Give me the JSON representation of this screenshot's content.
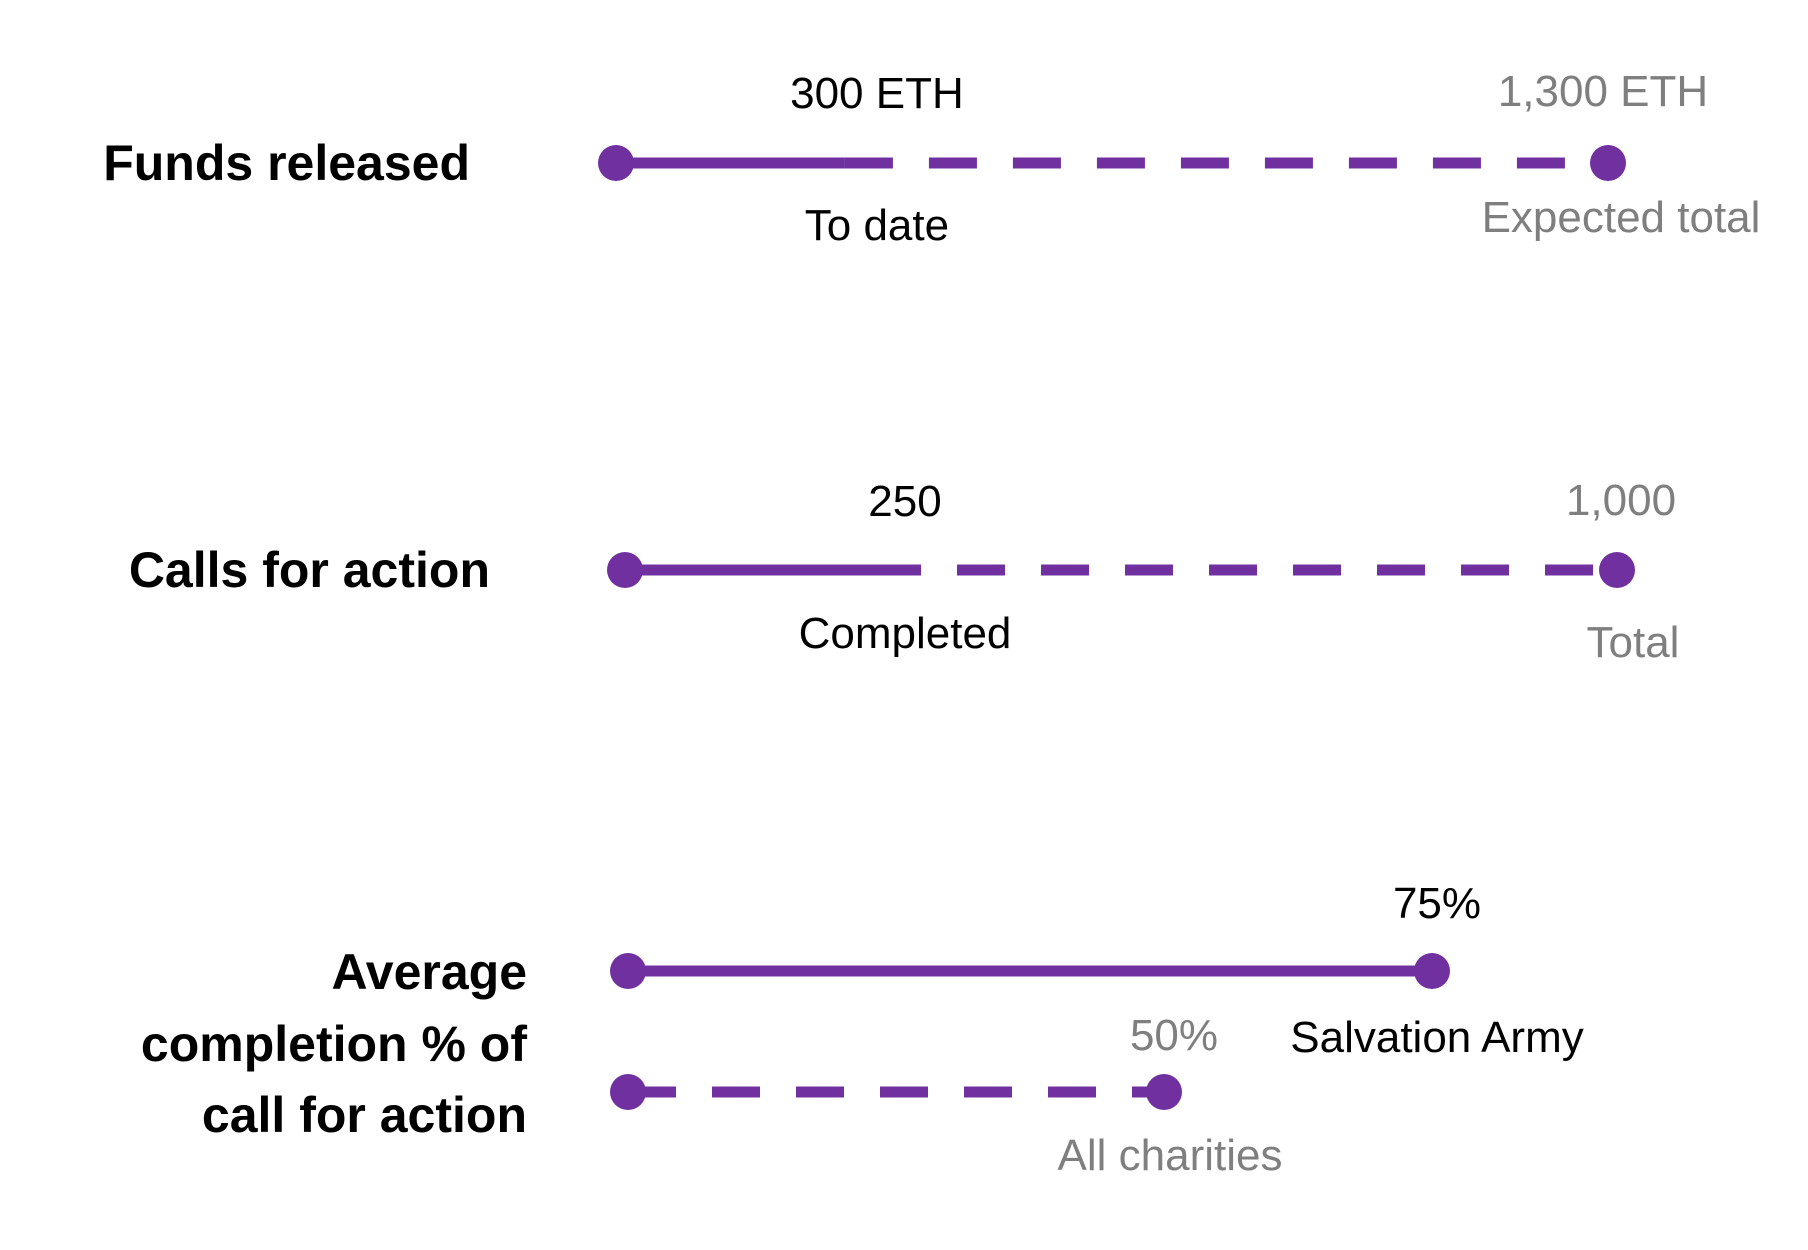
{
  "colors": {
    "accent": "#7030a0",
    "text_primary": "#000000",
    "text_secondary": "#7f7f7f"
  },
  "chart_data": [
    {
      "type": "progress-line",
      "label": "Funds released",
      "unit": "ETH",
      "actual": {
        "value": 300,
        "value_label": "300 ETH",
        "caption": "To date"
      },
      "target": {
        "value": 1300,
        "value_label": "1,300 ETH",
        "caption": "Expected total"
      }
    },
    {
      "type": "progress-line",
      "label": "Calls for action",
      "actual": {
        "value": 250,
        "value_label": "250",
        "caption": "Completed"
      },
      "target": {
        "value": 1000,
        "value_label": "1,000",
        "caption": "Total"
      }
    },
    {
      "type": "comparison-lines",
      "label_lines": [
        "Average",
        "completion % of",
        "call for action"
      ],
      "unit": "%",
      "series": [
        {
          "name": "Salvation Army",
          "value": 75,
          "value_label": "75%",
          "style": "solid"
        },
        {
          "name": "All charities",
          "value": 50,
          "value_label": "50%",
          "style": "dashed"
        }
      ]
    }
  ]
}
